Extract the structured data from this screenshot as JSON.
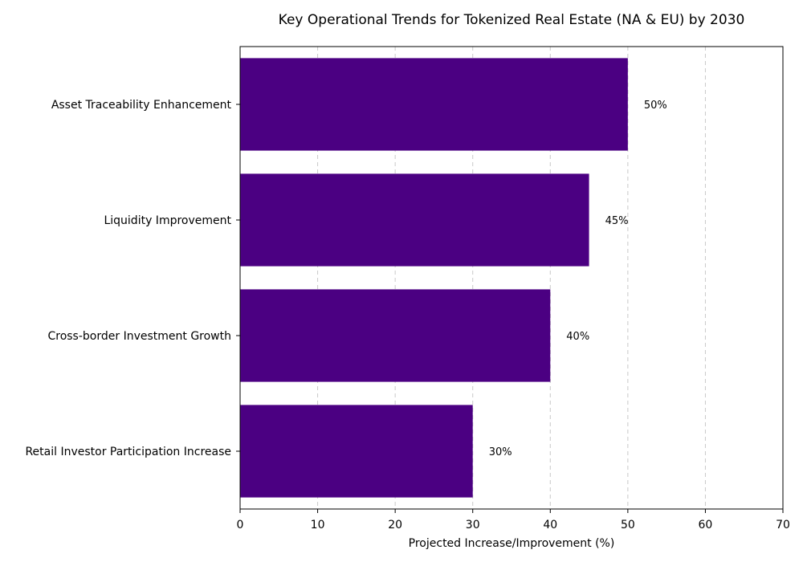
{
  "chart_data": {
    "type": "bar",
    "orientation": "horizontal",
    "title": "Key Operational Trends for Tokenized Real Estate (NA & EU) by 2030",
    "categories": [
      "Asset Traceability Enhancement",
      "Liquidity Improvement",
      "Cross-border Investment Growth",
      "Retail Investor Participation Increase"
    ],
    "values": [
      50,
      45,
      40,
      30
    ],
    "data_labels": [
      "50%",
      "45%",
      "40%",
      "30%"
    ],
    "xlabel": "Projected Increase/Improvement (%)",
    "ylabel": "",
    "xlim": [
      0,
      70
    ],
    "xticks": [
      0,
      10,
      20,
      30,
      40,
      50,
      60,
      70
    ],
    "grid": "x-dashed",
    "bar_color": "#4b0082"
  }
}
